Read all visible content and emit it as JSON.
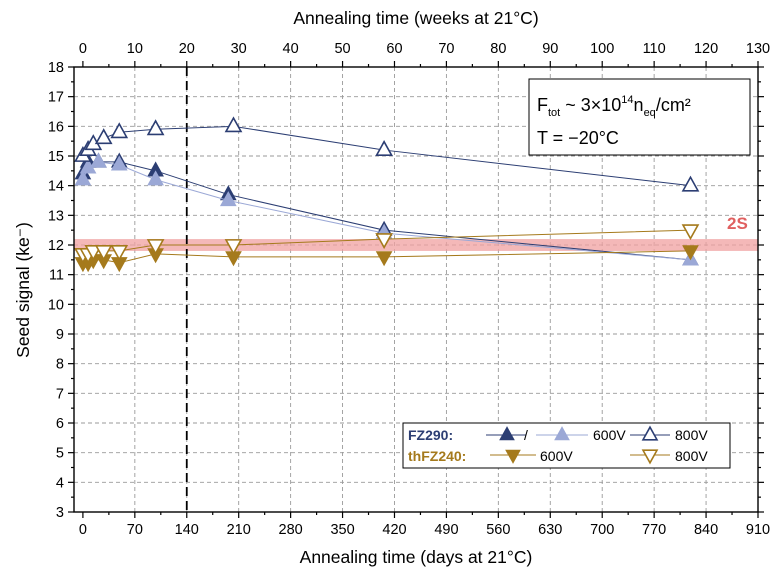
{
  "chart_data": {
    "type": "line",
    "xlabel": "Annealing time (days at 21°C)",
    "x2label": "Annealing time (weeks at 21°C)",
    "ylabel": "Seed signal (ke⁻)",
    "xlim": [
      -12,
      910
    ],
    "x2lim": [
      -1.714,
      130
    ],
    "ylim": [
      3,
      18
    ],
    "x_ticks": [
      0,
      70,
      140,
      210,
      280,
      350,
      420,
      490,
      560,
      630,
      700,
      770,
      840,
      910
    ],
    "x2_ticks": [
      0,
      10,
      20,
      30,
      40,
      50,
      60,
      70,
      80,
      90,
      100,
      110,
      120,
      130
    ],
    "y_ticks": [
      3,
      4,
      5,
      6,
      7,
      8,
      9,
      10,
      11,
      12,
      13,
      14,
      15,
      16,
      17,
      18
    ],
    "grid": true,
    "vertical_line_x": 140,
    "band": {
      "label": "2S",
      "y_low": 11.8,
      "y_high": 12.2,
      "color": "#f0a0a0"
    },
    "annotation": {
      "line1": {
        "prefix": "F",
        "prefix_sub": "tot",
        "mid": " ~ 3×10",
        "sup": "14",
        "n": "n",
        "n_sub": "eq",
        "suffix": "/cm²"
      },
      "line2": "T = −20°C"
    },
    "legend": {
      "fz_label": "FZ290:",
      "thfz_label": "thFZ240:",
      "fz_entries": [
        "/",
        "600V",
        "800V"
      ],
      "thfz_entries": [
        "600V",
        "800V"
      ]
    },
    "colors": {
      "fz_dark": "#2c3e73",
      "fz_light": "#9ba8d6",
      "thfz": "#a57a1c"
    },
    "series": [
      {
        "marker": "triangle-up-filled",
        "color": "#2c3e73",
        "x": [
          0,
          7,
          21,
          49,
          98,
          196,
          406,
          819
        ],
        "y": [
          14.4,
          14.8,
          14.8,
          14.8,
          14.5,
          13.7,
          12.5,
          11.5
        ]
      },
      {
        "marker": "triangle-up-filled",
        "color": "#9ba8d6",
        "x": [
          0,
          7,
          21,
          49,
          98,
          196,
          406,
          819
        ],
        "y": [
          14.2,
          14.6,
          14.8,
          14.7,
          14.2,
          13.5,
          12.4,
          11.5
        ]
      },
      {
        "marker": "triangle-up-open",
        "color": "#2c3e73",
        "x": [
          0,
          7,
          14,
          28,
          49,
          98,
          203,
          406,
          819
        ],
        "y": [
          15.0,
          15.2,
          15.4,
          15.6,
          15.8,
          15.9,
          16.0,
          15.2,
          14.0
        ]
      },
      {
        "marker": "triangle-down-filled",
        "color": "#a57a1c",
        "x": [
          0,
          7,
          14,
          28,
          49,
          98,
          203,
          406,
          819
        ],
        "y": [
          11.4,
          11.4,
          11.5,
          11.5,
          11.4,
          11.7,
          11.6,
          11.6,
          11.8
        ]
      },
      {
        "marker": "triangle-down-open",
        "color": "#a57a1c",
        "x": [
          0,
          7,
          14,
          28,
          49,
          98,
          203,
          406,
          819
        ],
        "y": [
          11.7,
          11.7,
          11.8,
          11.8,
          11.8,
          12.0,
          12.0,
          12.2,
          12.5
        ]
      }
    ]
  }
}
